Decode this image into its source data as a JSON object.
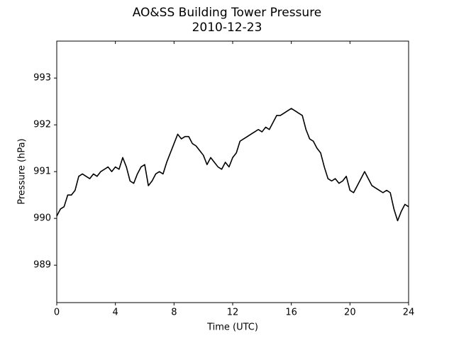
{
  "chart_data": {
    "type": "line",
    "title": "AO&SS Building Tower Pressure",
    "subtitle": "2010-12-23",
    "x_label": "Time (UTC)",
    "y_label": "Pressure (hPa)",
    "x": [
      0,
      0.25,
      0.5,
      0.75,
      1,
      1.25,
      1.5,
      1.75,
      2,
      2.25,
      2.5,
      2.75,
      3,
      3.25,
      3.5,
      3.75,
      4,
      4.25,
      4.5,
      4.75,
      5,
      5.25,
      5.5,
      5.75,
      6,
      6.25,
      6.5,
      6.75,
      7,
      7.25,
      7.5,
      7.75,
      8,
      8.25,
      8.5,
      8.75,
      9,
      9.25,
      9.5,
      9.75,
      10,
      10.25,
      10.5,
      10.75,
      11,
      11.25,
      11.5,
      11.75,
      12,
      12.25,
      12.5,
      12.75,
      13,
      13.25,
      13.5,
      13.75,
      14,
      14.25,
      14.5,
      14.75,
      15,
      15.25,
      15.5,
      15.75,
      16,
      16.25,
      16.5,
      16.75,
      17,
      17.25,
      17.5,
      17.75,
      18,
      18.25,
      18.5,
      18.75,
      19,
      19.25,
      19.5,
      19.75,
      20,
      20.25,
      20.5,
      20.75,
      21,
      21.25,
      21.5,
      21.75,
      22,
      22.25,
      22.5,
      22.75,
      23,
      23.25,
      23.5,
      23.75,
      24
    ],
    "series": [
      {
        "color": "#000000",
        "values": [
          990.05,
          990.2,
          990.25,
          990.5,
          990.5,
          990.6,
          990.9,
          990.95,
          990.9,
          990.85,
          990.95,
          990.9,
          991.0,
          991.05,
          991.1,
          991.0,
          991.1,
          991.05,
          991.3,
          991.1,
          990.8,
          990.75,
          990.95,
          991.1,
          991.15,
          990.7,
          990.8,
          990.95,
          991.0,
          990.95,
          991.2,
          991.4,
          991.6,
          991.8,
          991.7,
          991.75,
          991.75,
          991.6,
          991.55,
          991.45,
          991.35,
          991.15,
          991.3,
          991.2,
          991.1,
          991.05,
          991.2,
          991.1,
          991.3,
          991.4,
          991.65,
          991.7,
          991.75,
          991.8,
          991.85,
          991.9,
          991.85,
          991.95,
          991.9,
          992.05,
          992.2,
          992.2,
          992.25,
          992.3,
          992.35,
          992.3,
          992.25,
          992.2,
          991.9,
          991.7,
          991.65,
          991.5,
          991.4,
          991.1,
          990.85,
          990.8,
          990.85,
          990.75,
          990.8,
          990.9,
          990.6,
          990.55,
          990.7,
          990.85,
          991.0,
          990.85,
          990.7,
          990.65,
          990.6,
          990.55,
          990.6,
          990.55,
          990.2,
          989.95,
          990.15,
          990.3,
          990.25
        ]
      }
    ],
    "xlim": [
      0,
      24
    ],
    "xticks": [
      0,
      4,
      8,
      12,
      16,
      20,
      24
    ],
    "ylim": [
      988.2,
      993.79
    ],
    "yticks": [
      989,
      990,
      991,
      992,
      993
    ],
    "grid": false
  }
}
